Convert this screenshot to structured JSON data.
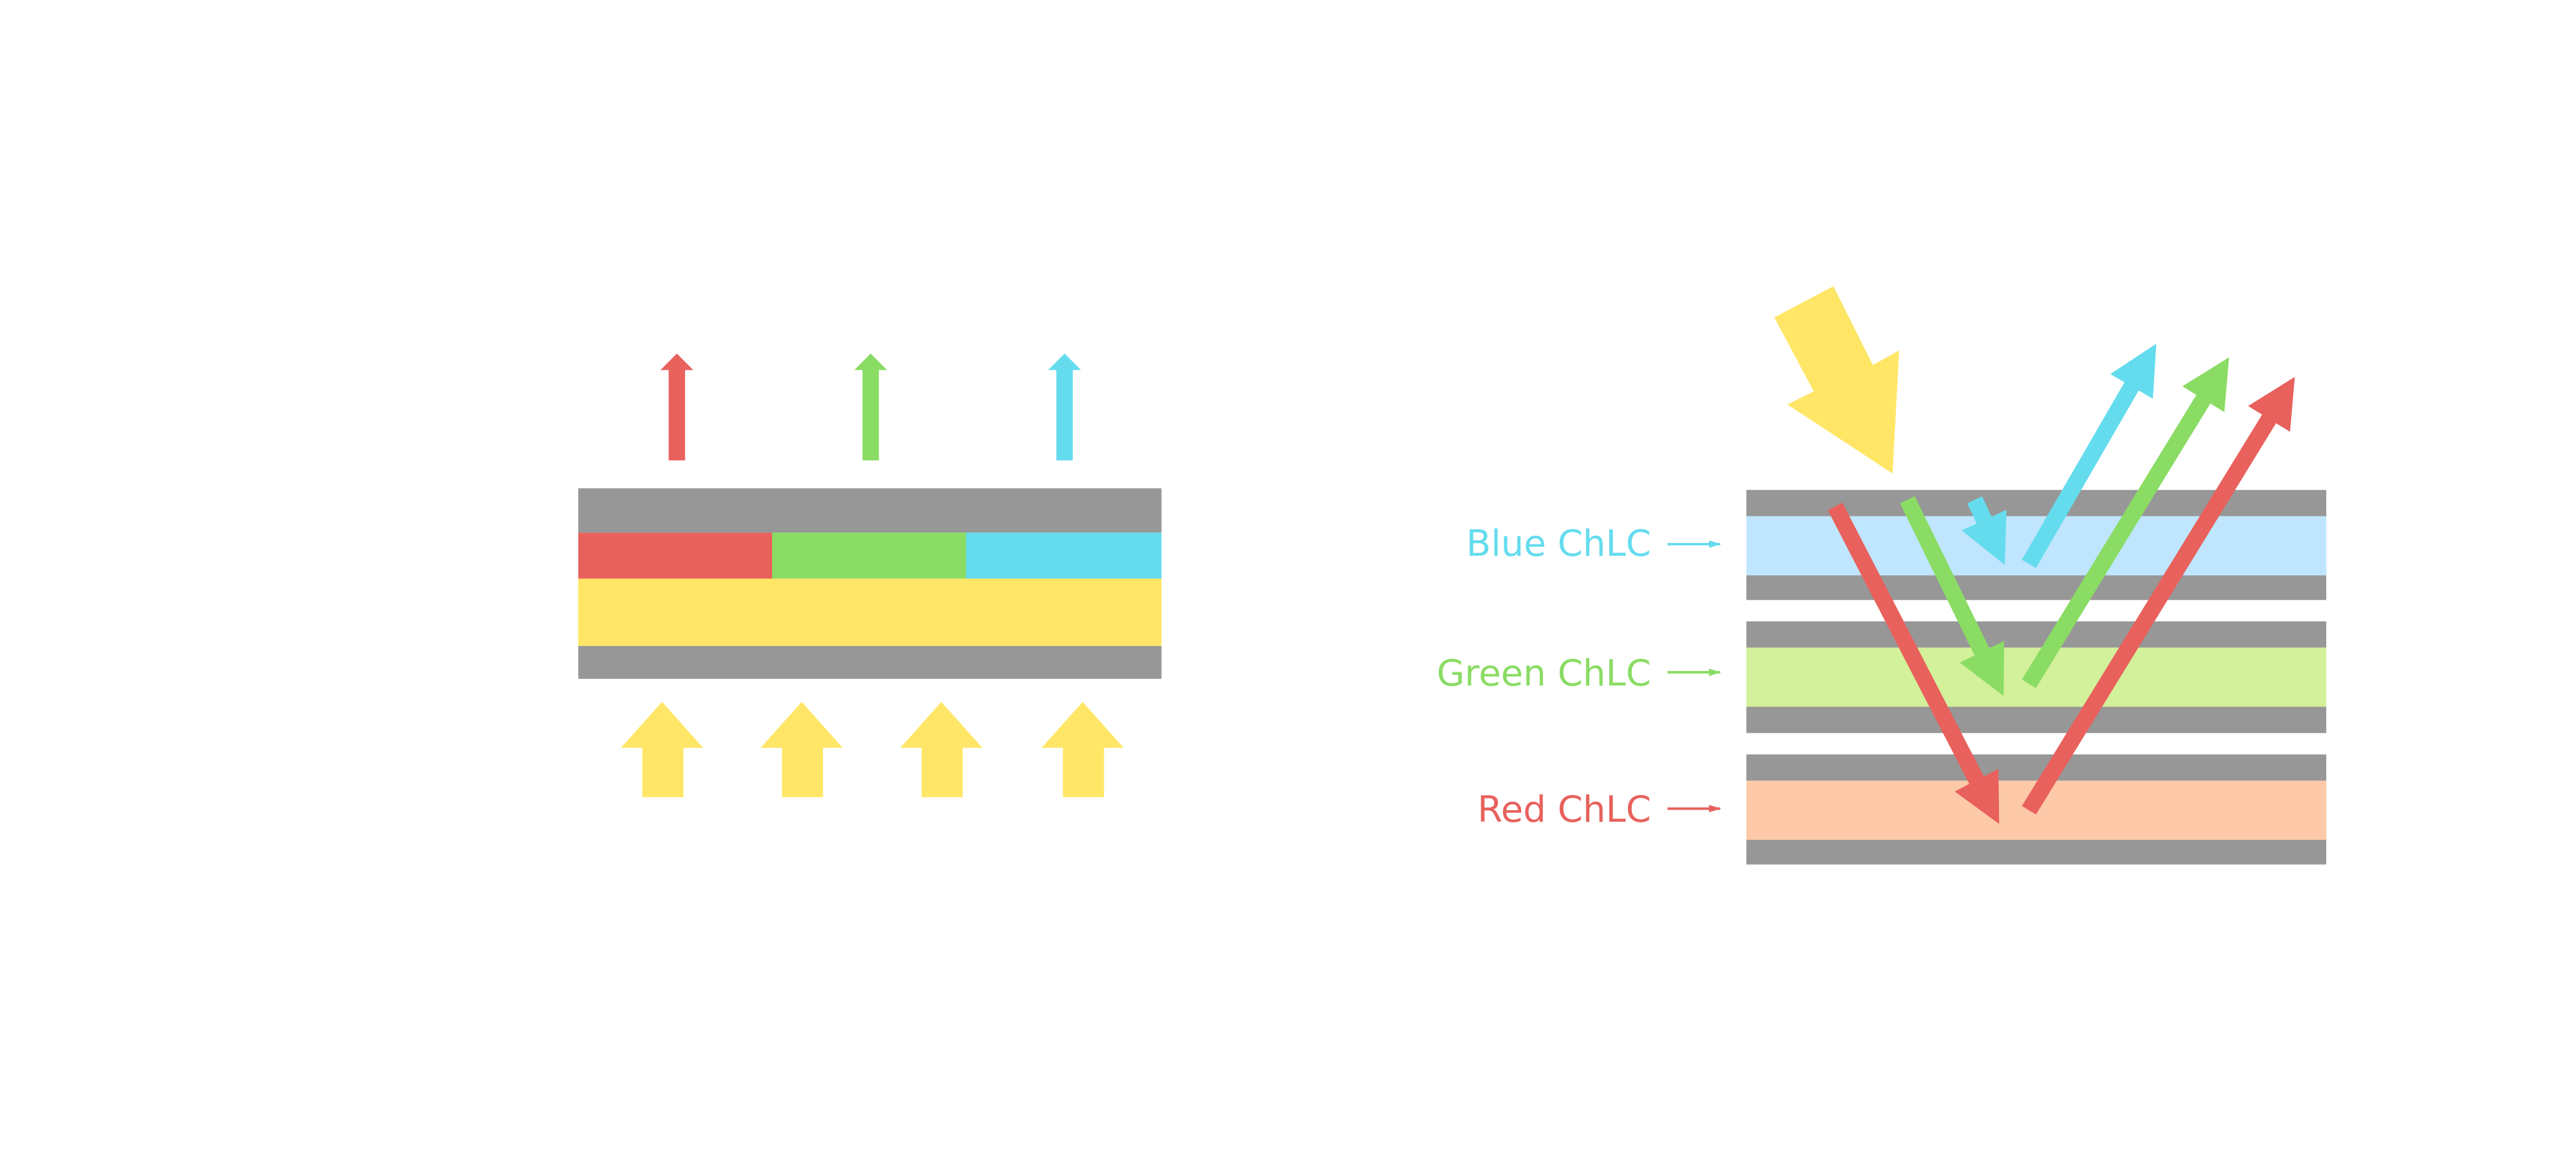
{
  "colors": {
    "gray": "#979797",
    "red": "#e8615c",
    "green": "#8adc64",
    "blue": "#64dcee",
    "yellow": "#ffe666",
    "light_blue": "#bfe6fe",
    "light_green": "#d3f09b",
    "peach": "#fdc9a9"
  },
  "labels": {
    "blue": "Blue ChLC",
    "green": "Green ChLC",
    "red": "Red ChLC"
  }
}
